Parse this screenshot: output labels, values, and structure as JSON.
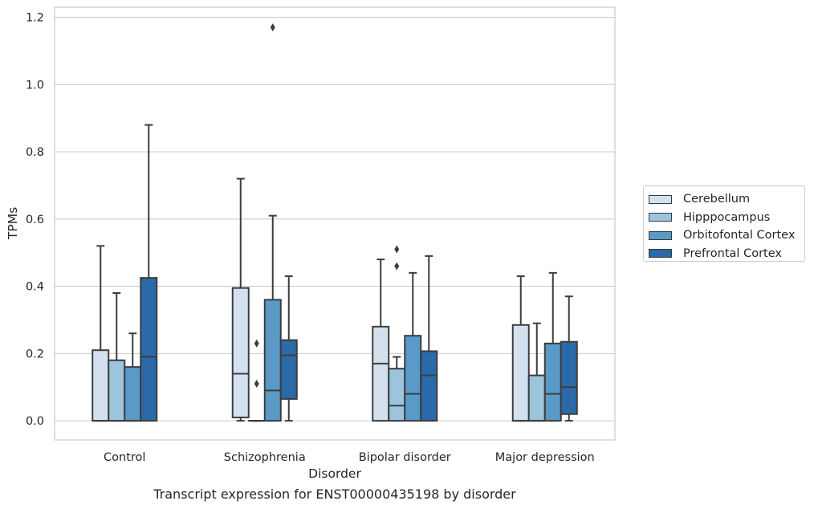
{
  "chart_data": {
    "type": "box",
    "title": "",
    "xlabel": "Disorder",
    "ylabel": "TPMs",
    "ylim": [
      -0.057,
      1.23
    ],
    "yticks": [
      0.0,
      0.2,
      0.4,
      0.6,
      0.8,
      1.0,
      1.2
    ],
    "ytick_labels": [
      "0.0",
      "0.2",
      "0.4",
      "0.6",
      "0.8",
      "1.0",
      "1.2"
    ],
    "grid": "horizontal",
    "legend_position": "right",
    "categories": [
      "Control",
      "Schizophrenia",
      "Bipolar disorder",
      "Major depression"
    ],
    "series": [
      {
        "name": "Cerebellum",
        "color": "#d3e1ef",
        "boxes": [
          {
            "whisker_low": 0.0,
            "q1": 0.0,
            "median": 0.0,
            "q3": 0.21,
            "whisker_high": 0.52,
            "outliers": []
          },
          {
            "whisker_low": 0.0,
            "q1": 0.01,
            "median": 0.14,
            "q3": 0.395,
            "whisker_high": 0.72,
            "outliers": []
          },
          {
            "whisker_low": 0.0,
            "q1": 0.0,
            "median": 0.17,
            "q3": 0.28,
            "whisker_high": 0.48,
            "outliers": []
          },
          {
            "whisker_low": 0.0,
            "q1": 0.0,
            "median": 0.0,
            "q3": 0.285,
            "whisker_high": 0.43,
            "outliers": []
          }
        ]
      },
      {
        "name": "Hipppocampus",
        "color": "#9dc4dd",
        "boxes": [
          {
            "whisker_low": 0.0,
            "q1": 0.0,
            "median": 0.0,
            "q3": 0.18,
            "whisker_high": 0.38,
            "outliers": []
          },
          {
            "whisker_low": 0.0,
            "q1": 0.0,
            "median": 0.0,
            "q3": 0.0,
            "whisker_high": 0.0,
            "outliers": [
              0.11,
              0.23
            ]
          },
          {
            "whisker_low": 0.0,
            "q1": 0.0,
            "median": 0.045,
            "q3": 0.155,
            "whisker_high": 0.19,
            "outliers": [
              0.46,
              0.51
            ]
          },
          {
            "whisker_low": 0.0,
            "q1": 0.0,
            "median": 0.0,
            "q3": 0.135,
            "whisker_high": 0.29,
            "outliers": []
          }
        ]
      },
      {
        "name": "Orbitofontal Cortex",
        "color": "#5a9ac8",
        "boxes": [
          {
            "whisker_low": 0.0,
            "q1": 0.0,
            "median": 0.0,
            "q3": 0.16,
            "whisker_high": 0.26,
            "outliers": []
          },
          {
            "whisker_low": 0.0,
            "q1": 0.0,
            "median": 0.09,
            "q3": 0.36,
            "whisker_high": 0.61,
            "outliers": [
              1.17
            ]
          },
          {
            "whisker_low": 0.0,
            "q1": 0.0,
            "median": 0.08,
            "q3": 0.253,
            "whisker_high": 0.44,
            "outliers": []
          },
          {
            "whisker_low": 0.0,
            "q1": 0.0,
            "median": 0.08,
            "q3": 0.23,
            "whisker_high": 0.44,
            "outliers": []
          }
        ]
      },
      {
        "name": "Prefrontal Cortex",
        "color": "#2a6aa8",
        "boxes": [
          {
            "whisker_low": 0.0,
            "q1": 0.0,
            "median": 0.19,
            "q3": 0.425,
            "whisker_high": 0.88,
            "outliers": []
          },
          {
            "whisker_low": 0.0,
            "q1": 0.065,
            "median": 0.195,
            "q3": 0.24,
            "whisker_high": 0.43,
            "outliers": []
          },
          {
            "whisker_low": 0.0,
            "q1": 0.0,
            "median": 0.135,
            "q3": 0.207,
            "whisker_high": 0.49,
            "outliers": []
          },
          {
            "whisker_low": 0.0,
            "q1": 0.02,
            "median": 0.1,
            "q3": 0.235,
            "whisker_high": 0.37,
            "outliers": []
          }
        ]
      }
    ]
  },
  "caption": "Transcript expression for ENST00000435198 by disorder"
}
